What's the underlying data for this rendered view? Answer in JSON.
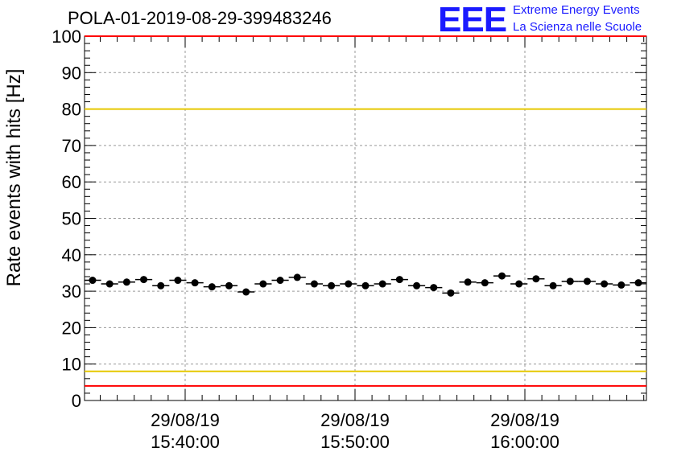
{
  "chart_data": {
    "type": "scatter",
    "title": "POLA-01-2019-08-29-399483246",
    "ylabel": "Rate events with hits [Hz]",
    "xlabel": "",
    "ylim": [
      0,
      100
    ],
    "yticks": [
      0,
      10,
      20,
      30,
      40,
      50,
      60,
      70,
      80,
      90,
      100
    ],
    "xticks": [
      {
        "date": "29/08/19",
        "time": "15:40:00"
      },
      {
        "date": "29/08/19",
        "time": "15:50:00"
      },
      {
        "date": "29/08/19",
        "time": "16:00:00"
      }
    ],
    "grid": true,
    "reference_lines": [
      {
        "value": 100,
        "color": "#ff0000"
      },
      {
        "value": 80,
        "color": "#e6c800"
      },
      {
        "value": 8,
        "color": "#e6c800"
      },
      {
        "value": 4,
        "color": "#ff0000"
      }
    ],
    "series": [
      {
        "marker_color": "#000000",
        "values": [
          33,
          32,
          32.5,
          33.2,
          31.5,
          33,
          32.3,
          31.2,
          31.5,
          29.8,
          32,
          33,
          33.8,
          32,
          31.5,
          32,
          31.5,
          32,
          33.2,
          31.5,
          31,
          29.5,
          32.5,
          32.3,
          34.2,
          32,
          33.4,
          31.5,
          32.7,
          32.7,
          32,
          31.7,
          32.3
        ]
      }
    ]
  },
  "logo": {
    "text": "EEE",
    "line1": "Extreme Energy Events",
    "line2": "La Scienza nelle Scuole",
    "color": "#1a1aff"
  }
}
